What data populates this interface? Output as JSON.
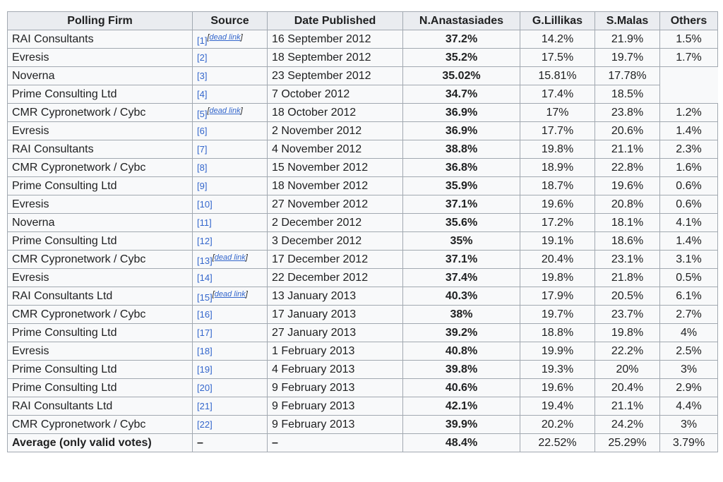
{
  "headers": [
    "Polling Firm",
    "Source",
    "Date Published",
    "N.Anastasiades",
    "G.Lillikas",
    "S.Malas",
    "Others"
  ],
  "dead_link_text": "dead link",
  "rows": [
    {
      "firm": "RAI Consultants",
      "source": "[1]",
      "dead": true,
      "date": "16 September 2012",
      "na": "37.2%",
      "gl": "14.2%",
      "sm": "21.9%",
      "others": "1.5%"
    },
    {
      "firm": "Evresis",
      "source": "[2]",
      "dead": false,
      "date": "18 September 2012",
      "na": "35.2%",
      "gl": "17.5%",
      "sm": "19.7%",
      "others": "1.7%"
    },
    {
      "firm": "Noverna",
      "source": "[3]",
      "dead": false,
      "date": "23 September 2012",
      "na": "35.02%",
      "gl": "15.81%",
      "sm": "17.78%",
      "others": null
    },
    {
      "firm": "Prime Consulting Ltd",
      "source": "[4]",
      "dead": false,
      "date": "7 October 2012",
      "na": "34.7%",
      "gl": "17.4%",
      "sm": "18.5%",
      "others": null
    },
    {
      "firm": "CMR Cypronetwork / Cybc",
      "source": "[5]",
      "dead": true,
      "date": "18 October 2012",
      "na": "36.9%",
      "gl": "17%",
      "sm": "23.8%",
      "others": "1.2%"
    },
    {
      "firm": "Evresis",
      "source": "[6]",
      "dead": false,
      "date": "2 November 2012",
      "na": "36.9%",
      "gl": "17.7%",
      "sm": "20.6%",
      "others": "1.4%"
    },
    {
      "firm": "RAI Consultants",
      "source": "[7]",
      "dead": false,
      "date": "4 November 2012",
      "na": "38.8%",
      "gl": "19.8%",
      "sm": "21.1%",
      "others": "2.3%"
    },
    {
      "firm": "CMR Cypronetwork / Cybc",
      "source": "[8]",
      "dead": false,
      "date": "15 November 2012",
      "na": "36.8%",
      "gl": "18.9%",
      "sm": "22.8%",
      "others": "1.6%"
    },
    {
      "firm": "Prime Consulting Ltd",
      "source": "[9]",
      "dead": false,
      "date": "18 November 2012",
      "na": "35.9%",
      "gl": "18.7%",
      "sm": "19.6%",
      "others": "0.6%"
    },
    {
      "firm": "Evresis",
      "source": "[10]",
      "dead": false,
      "date": "27 November 2012",
      "na": "37.1%",
      "gl": "19.6%",
      "sm": "20.8%",
      "others": "0.6%"
    },
    {
      "firm": "Noverna",
      "source": "[11]",
      "dead": false,
      "date": "2 December 2012",
      "na": "35.6%",
      "gl": "17.2%",
      "sm": "18.1%",
      "others": "4.1%"
    },
    {
      "firm": "Prime Consulting Ltd",
      "source": "[12]",
      "dead": false,
      "date": "3 December 2012",
      "na": "35%",
      "gl": "19.1%",
      "sm": "18.6%",
      "others": "1.4%"
    },
    {
      "firm": "CMR Cypronetwork / Cybc",
      "source": "[13]",
      "dead": true,
      "date": "17 December 2012",
      "na": "37.1%",
      "gl": "20.4%",
      "sm": "23.1%",
      "others": "3.1%"
    },
    {
      "firm": "Evresis",
      "source": "[14]",
      "dead": false,
      "date": "22 December 2012",
      "na": "37.4%",
      "gl": "19.8%",
      "sm": "21.8%",
      "others": "0.5%"
    },
    {
      "firm": "RAI Consultants Ltd",
      "source": "[15]",
      "dead": true,
      "date": "13 January 2013",
      "na": "40.3%",
      "gl": "17.9%",
      "sm": "20.5%",
      "others": "6.1%"
    },
    {
      "firm": "CMR Cypronetwork / Cybc",
      "source": "[16]",
      "dead": false,
      "date": "17 January 2013",
      "na": "38%",
      "gl": "19.7%",
      "sm": "23.7%",
      "others": "2.7%"
    },
    {
      "firm": "Prime Consulting Ltd",
      "source": "[17]",
      "dead": false,
      "date": "27 January 2013",
      "na": "39.2%",
      "gl": "18.8%",
      "sm": "19.8%",
      "others": "4%"
    },
    {
      "firm": "Evresis",
      "source": "[18]",
      "dead": false,
      "date": "1 February 2013",
      "na": "40.8%",
      "gl": "19.9%",
      "sm": "22.2%",
      "others": "2.5%"
    },
    {
      "firm": "Prime Consulting Ltd",
      "source": "[19]",
      "dead": false,
      "date": "4 February 2013",
      "na": "39.8%",
      "gl": "19.3%",
      "sm": "20%",
      "others": "3%"
    },
    {
      "firm": "Prime Consulting Ltd",
      "source": "[20]",
      "dead": false,
      "date": "9 February 2013",
      "na": "40.6%",
      "gl": "19.6%",
      "sm": "20.4%",
      "others": "2.9%"
    },
    {
      "firm": "RAI Consultants Ltd",
      "source": "[21]",
      "dead": false,
      "date": "9 February 2013",
      "na": "42.1%",
      "gl": "19.4%",
      "sm": "21.1%",
      "others": "4.4%"
    },
    {
      "firm": "CMR Cypronetwork / Cybc",
      "source": "[22]",
      "dead": false,
      "date": "9 February 2013",
      "na": "39.9%",
      "gl": "20.2%",
      "sm": "24.2%",
      "others": "3%"
    }
  ],
  "average": {
    "firm": "Average (only valid votes)",
    "source": "–",
    "date": "–",
    "na": "48.4%",
    "gl": "22.52%",
    "sm": "25.29%",
    "others": "3.79%"
  }
}
